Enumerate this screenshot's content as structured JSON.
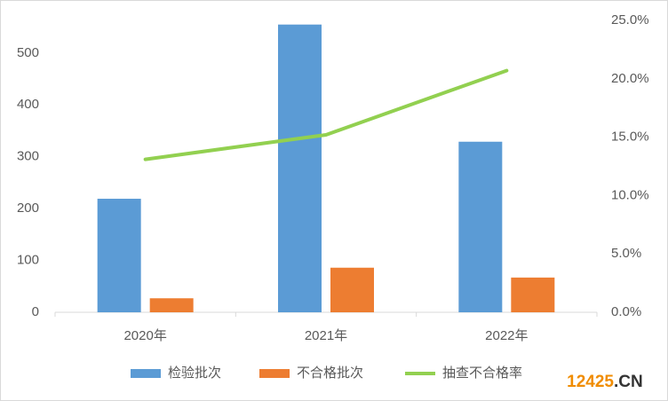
{
  "chart_data": {
    "type": "bar_line",
    "categories": [
      "2020年",
      "2021年",
      "2022年"
    ],
    "series": [
      {
        "name": "检验批次",
        "color": "#5b9bd5",
        "type": "bar",
        "values": [
          219,
          555,
          329
        ]
      },
      {
        "name": "不合格批次",
        "color": "#ed7d31",
        "type": "bar",
        "values": [
          27,
          86,
          67
        ]
      },
      {
        "name": "抽查不合格率",
        "color": "#92d050",
        "type": "line",
        "axis": "y2",
        "values": [
          13.1,
          15.2,
          20.7
        ]
      }
    ],
    "ylim": [
      0,
      563
    ],
    "yticks": [
      0,
      100,
      200,
      300,
      400,
      500
    ],
    "y2lim": [
      0,
      25
    ],
    "y2ticks": [
      {
        "value": 0,
        "label": "0.0%"
      },
      {
        "value": 5,
        "label": "5.0%"
      },
      {
        "value": 10,
        "label": "10.0%"
      },
      {
        "value": 15,
        "label": "15.0%"
      },
      {
        "value": 20,
        "label": "20.0%"
      },
      {
        "value": 25,
        "label": "25.0%"
      }
    ],
    "legend": "bottom",
    "watermark": [
      "12425",
      ".CN"
    ]
  }
}
